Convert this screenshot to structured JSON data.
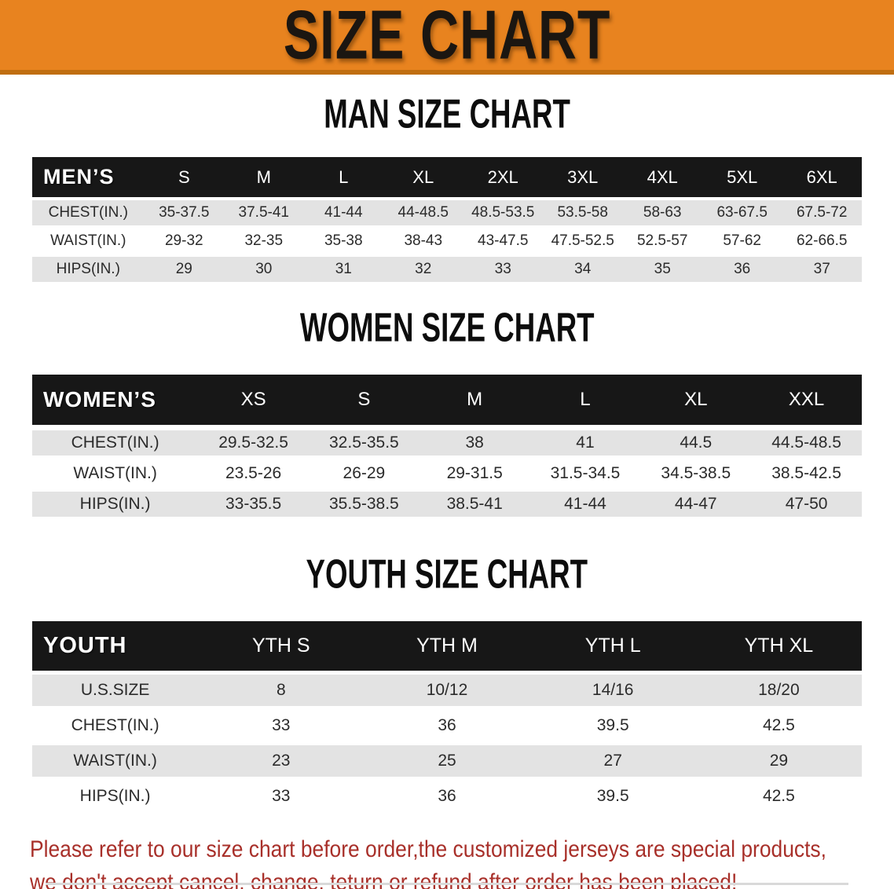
{
  "banner": {
    "title": "SIZE CHART",
    "bg_color": "#E8831F"
  },
  "sections": [
    {
      "id": "men",
      "heading": "MAN SIZE CHART",
      "table": {
        "header_label": "MEN’S",
        "columns": [
          "S",
          "M",
          "L",
          "XL",
          "2XL",
          "3XL",
          "4XL",
          "5XL",
          "6XL"
        ],
        "rows": [
          {
            "label": "CHEST(IN.)",
            "values": [
              "35-37.5",
              "37.5-41",
              "41-44",
              "44-48.5",
              "48.5-53.5",
              "53.5-58",
              "58-63",
              "63-67.5",
              "67.5-72"
            ]
          },
          {
            "label": "WAIST(IN.)",
            "values": [
              "29-32",
              "32-35",
              "35-38",
              "38-43",
              "43-47.5",
              "47.5-52.5",
              "52.5-57",
              "57-62",
              "62-66.5"
            ]
          },
          {
            "label": "HIPS(IN.)",
            "values": [
              "29",
              "30",
              "31",
              "32",
              "33",
              "34",
              "35",
              "36",
              "37"
            ]
          }
        ]
      }
    },
    {
      "id": "women",
      "heading": "WOMEN SIZE CHART",
      "table": {
        "header_label": "WOMEN’S",
        "columns": [
          "XS",
          "S",
          "M",
          "L",
          "XL",
          "XXL"
        ],
        "rows": [
          {
            "label": "CHEST(IN.)",
            "values": [
              "29.5-32.5",
              "32.5-35.5",
              "38",
              "41",
              "44.5",
              "44.5-48.5"
            ]
          },
          {
            "label": "WAIST(IN.)",
            "values": [
              "23.5-26",
              "26-29",
              "29-31.5",
              "31.5-34.5",
              "34.5-38.5",
              "38.5-42.5"
            ]
          },
          {
            "label": "HIPS(IN.)",
            "values": [
              "33-35.5",
              "35.5-38.5",
              "38.5-41",
              "41-44",
              "44-47",
              "47-50"
            ]
          }
        ]
      }
    },
    {
      "id": "youth",
      "heading": "YOUTH SIZE CHART",
      "table": {
        "header_label": "YOUTH",
        "columns": [
          "YTH S",
          "YTH M",
          "YTH L",
          "YTH XL"
        ],
        "rows": [
          {
            "label": "U.S.SIZE",
            "values": [
              "8",
              "10/12",
              "14/16",
              "18/20"
            ]
          },
          {
            "label": "CHEST(IN.)",
            "values": [
              "33",
              "36",
              "39.5",
              "42.5"
            ]
          },
          {
            "label": "WAIST(IN.)",
            "values": [
              "23",
              "25",
              "27",
              "29"
            ]
          },
          {
            "label": "HIPS(IN.)",
            "values": [
              "33",
              "36",
              "39.5",
              "42.5"
            ]
          }
        ]
      }
    }
  ],
  "disclaimer": {
    "line1": "Please refer to our size chart before order,the customized jerseys are special products,",
    "line2": "we don't accept cancel, change, teturn or refund after order has been placed!",
    "color": "#A8302A"
  }
}
